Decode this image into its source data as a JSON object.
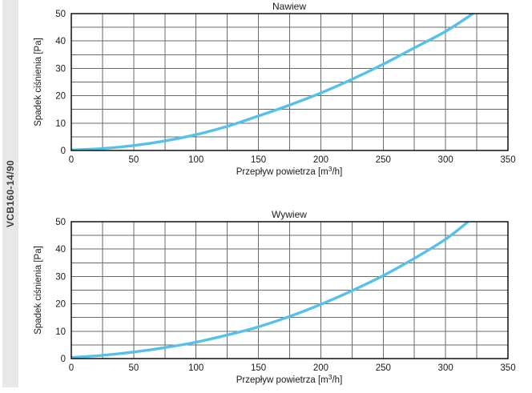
{
  "sidebar": {
    "label": "VCB160-14/90",
    "background": "#e8e8e8"
  },
  "style": {
    "curve_color": "#55c1e9",
    "grid_color": "#6a6a6a",
    "border_color": "#111111",
    "text_color": "#1a1a1a"
  },
  "chart_data": [
    {
      "type": "line",
      "title": "Nawiew",
      "xlabel": "Przepływ powietrza [m³/h]",
      "xlabel_parts": [
        "Przepływ powietrza [m",
        "3",
        "/h]"
      ],
      "ylabel": "Spadek ciśnienia [Pa]",
      "xlim": [
        0,
        350
      ],
      "ylim": [
        0,
        50
      ],
      "x_ticks": [
        0,
        50,
        100,
        150,
        200,
        250,
        300,
        350
      ],
      "y_ticks": [
        0,
        10,
        20,
        30,
        40,
        50
      ],
      "x_grid_step": 25,
      "y_grid_step": 5,
      "grid": true,
      "legend": false,
      "series": [
        {
          "name": "Nawiew",
          "points": [
            [
              0,
              0.2
            ],
            [
              25,
              0.7
            ],
            [
              50,
              1.8
            ],
            [
              75,
              3.5
            ],
            [
              100,
              5.8
            ],
            [
              125,
              8.8
            ],
            [
              150,
              12.6
            ],
            [
              175,
              16.6
            ],
            [
              200,
              21.0
            ],
            [
              225,
              26.0
            ],
            [
              250,
              31.5
            ],
            [
              275,
              37.5
            ],
            [
              300,
              43.5
            ],
            [
              322,
              50.0
            ]
          ]
        }
      ]
    },
    {
      "type": "line",
      "title": "Wywiew",
      "xlabel": "Przepływ powietrza [m³/h]",
      "xlabel_parts": [
        "Przepływ powietrza [m",
        "3",
        "/h]"
      ],
      "ylabel": "Spadek ciśnienia [Pa]",
      "xlim": [
        0,
        350
      ],
      "ylim": [
        0,
        50
      ],
      "x_ticks": [
        0,
        50,
        100,
        150,
        200,
        250,
        300,
        350
      ],
      "y_ticks": [
        0,
        10,
        20,
        30,
        40,
        50
      ],
      "x_grid_step": 25,
      "y_grid_step": 5,
      "grid": true,
      "legend": false,
      "series": [
        {
          "name": "Wywiew",
          "points": [
            [
              0,
              0.4
            ],
            [
              25,
              1.2
            ],
            [
              50,
              2.4
            ],
            [
              75,
              4.0
            ],
            [
              100,
              6.0
            ],
            [
              125,
              8.6
            ],
            [
              150,
              11.6
            ],
            [
              175,
              15.4
            ],
            [
              200,
              19.8
            ],
            [
              225,
              24.8
            ],
            [
              250,
              30.3
            ],
            [
              275,
              36.6
            ],
            [
              300,
              43.6
            ],
            [
              318,
              50.0
            ]
          ]
        }
      ]
    }
  ]
}
